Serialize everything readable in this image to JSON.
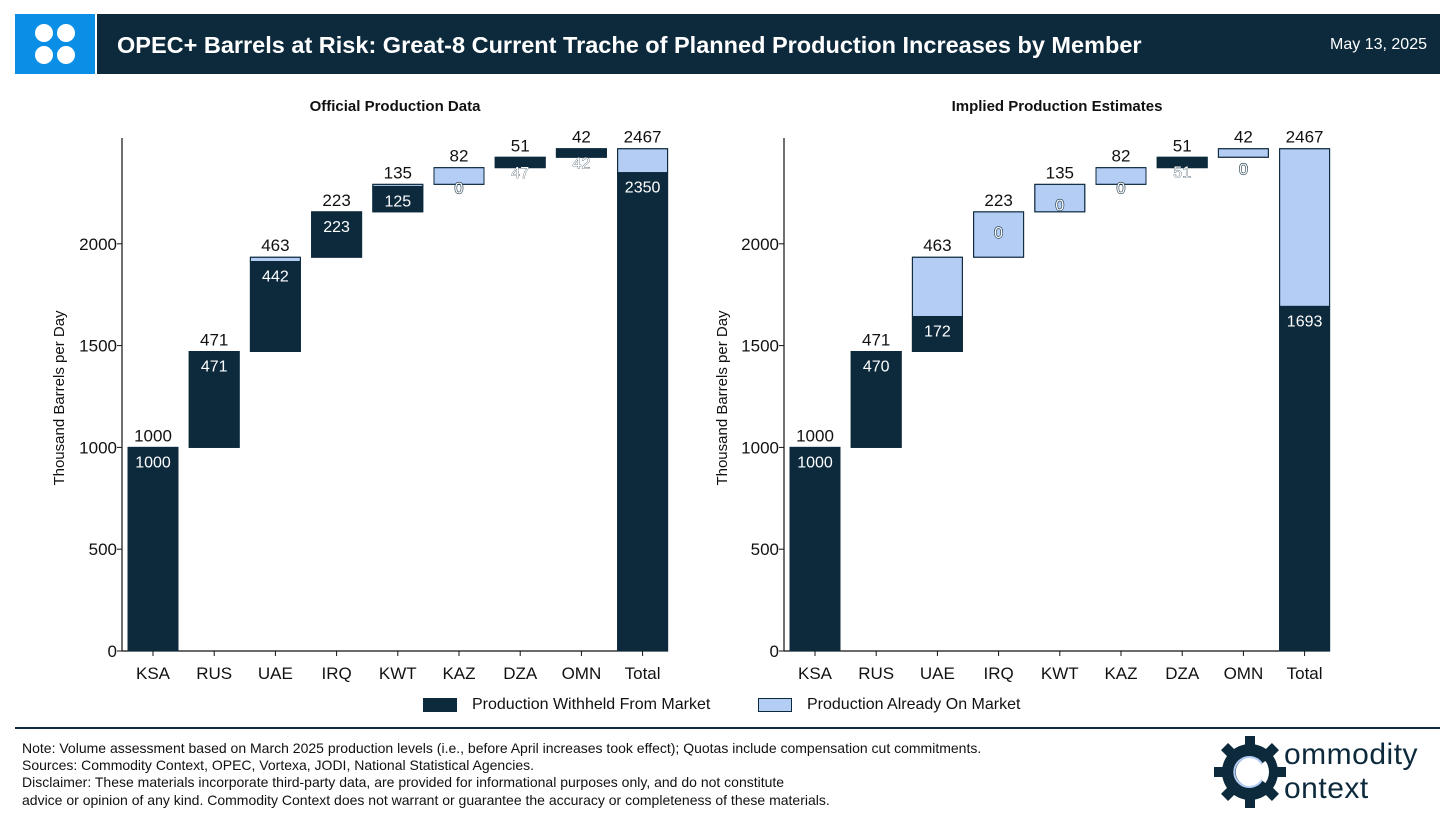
{
  "header": {
    "title": "OPEC+ Barrels at Risk: Great-8 Current Trache of Planned Production Increases by Member",
    "date": "May 13, 2025",
    "logo_icon": "opec-logo-icon"
  },
  "colors": {
    "withheld": "#0d2a3d",
    "on_market": "#b4cdf5",
    "header_bg": "#0d2a3d",
    "logo_bg": "#0b8fe6"
  },
  "legend": {
    "withheld": "Production Withheld From Market",
    "on_market": "Production Already On Market"
  },
  "chart_data": [
    {
      "type": "bar",
      "title": "Official Production Data",
      "ylabel": "Thousand Barrels per Day",
      "xlabel": "",
      "ylim": [
        0,
        2500
      ],
      "yticks": [
        0,
        500,
        1000,
        1500,
        2000
      ],
      "categories": [
        "KSA",
        "RUS",
        "UAE",
        "IRQ",
        "KWT",
        "KAZ",
        "DZA",
        "OMN",
        "Total"
      ],
      "totals": [
        1000,
        471,
        463,
        223,
        135,
        82,
        51,
        42,
        2467
      ],
      "withheld": [
        1000,
        471,
        442,
        223,
        125,
        0,
        47,
        42,
        2350
      ],
      "legend_position": "bottom-center",
      "grid": false
    },
    {
      "type": "bar",
      "title": "Implied Production Estimates",
      "ylabel": "Thousand Barrels per Day",
      "xlabel": "",
      "ylim": [
        0,
        2500
      ],
      "yticks": [
        0,
        500,
        1000,
        1500,
        2000
      ],
      "categories": [
        "KSA",
        "RUS",
        "UAE",
        "IRQ",
        "KWT",
        "KAZ",
        "DZA",
        "OMN",
        "Total"
      ],
      "totals": [
        1000,
        471,
        463,
        223,
        135,
        82,
        51,
        42,
        2467
      ],
      "withheld": [
        1000,
        470,
        172,
        0,
        0,
        0,
        51,
        0,
        1693
      ],
      "legend_position": "bottom-center",
      "grid": false
    }
  ],
  "footer": {
    "note": "Note: Volume assessment based on March 2025 production levels (i.e., before April increases took effect); Quotas include compensation cut commitments.",
    "sources": "Sources: Commodity Context, OPEC, Vortexa, JODI, National Statistical Agencies.",
    "disclaimer_1": "Disclaimer: These materials incorporate third-party data, are provided for informational purposes only, and do not constitute",
    "disclaimer_2": "advice or opinion of any kind. Commodity Context does not warrant or guarantee the accuracy or completeness of these materials."
  },
  "brand": {
    "line1": "ommodity",
    "line2": "ontext",
    "icon": "gear-c-logo-icon"
  }
}
